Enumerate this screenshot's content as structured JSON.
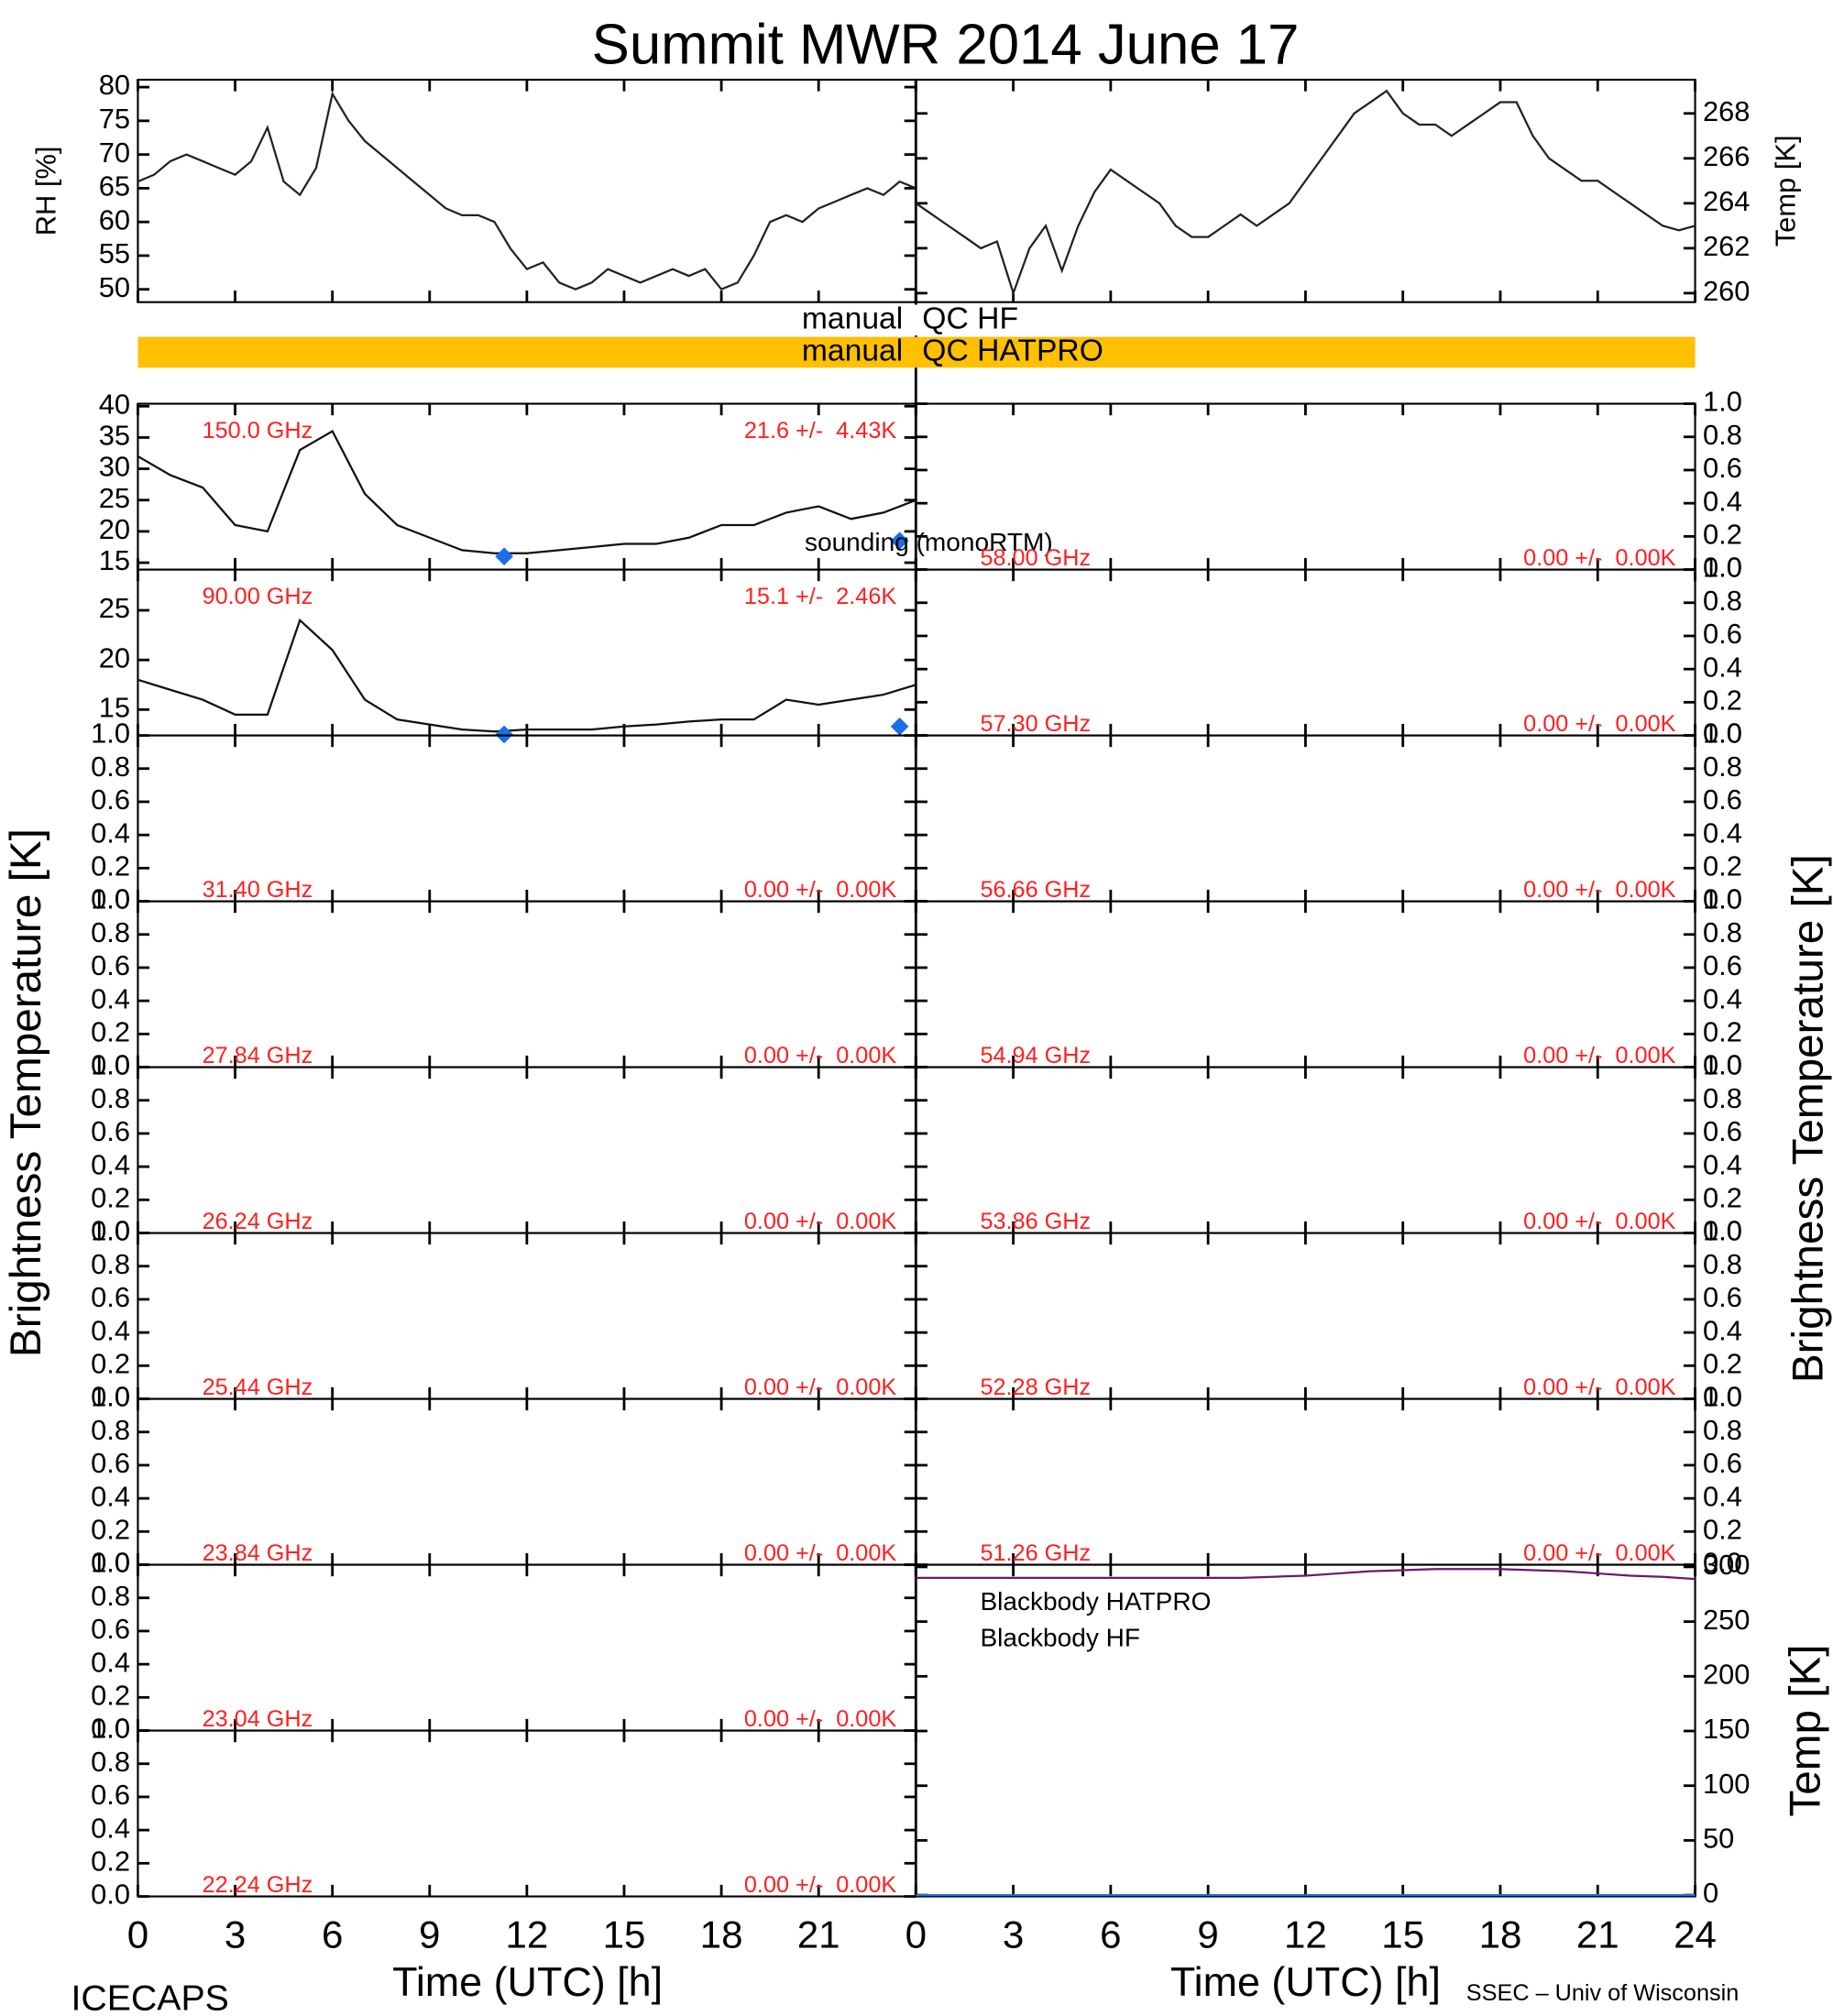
{
  "title": "Summit MWR 2014 June 17",
  "footer_left": "ICECAPS",
  "footer_right": "SSEC – Univ of Wisconsin",
  "xlabel": "Time (UTC) [h]",
  "bt_ylabel": "Brightness Temperature [K]",
  "xlim": [
    0,
    24
  ],
  "xticks": [
    0,
    3,
    6,
    9,
    12,
    15,
    18,
    21,
    24
  ],
  "qc": [
    {
      "left": "manual",
      "right": "QC HF",
      "color": "#ffffff"
    },
    {
      "left": "manual",
      "right": "QC HATPRO",
      "color": "#ffc000"
    }
  ],
  "chart_data": [
    {
      "type": "line",
      "ylabel": "RH [%]",
      "ylim": [
        48.1,
        81.1
      ],
      "yticks": [
        50,
        55,
        60,
        65,
        70,
        75,
        80
      ],
      "x": [
        0,
        0.5,
        1,
        1.5,
        2,
        2.5,
        3,
        3.5,
        4,
        4.5,
        5,
        5.5,
        6,
        6.5,
        7,
        7.5,
        8,
        8.5,
        9,
        9.5,
        10,
        10.5,
        11,
        11.5,
        12,
        12.5,
        13,
        13.5,
        14,
        14.5,
        15,
        15.5,
        16,
        16.5,
        17,
        17.5,
        18,
        18.5,
        19,
        19.5,
        20,
        20.5,
        21,
        21.5,
        22,
        22.5,
        23,
        23.5,
        24
      ],
      "series": [
        {
          "color": "#222222",
          "values": [
            66,
            67,
            69,
            70,
            69,
            68,
            67,
            69,
            74,
            66,
            64,
            68,
            79,
            75,
            72,
            70,
            68,
            66,
            64,
            62,
            61,
            61,
            60,
            56,
            53,
            54,
            51,
            50,
            51,
            53,
            52,
            51,
            52,
            53,
            52,
            53,
            50,
            51,
            55,
            60,
            61,
            60,
            62,
            63,
            64,
            65,
            64,
            66,
            65
          ]
        }
      ]
    },
    {
      "type": "line",
      "ylabel": "Temp [K]",
      "ylim": [
        259.6,
        269.5
      ],
      "yticks": [
        260,
        262,
        264,
        266,
        268
      ],
      "x": [
        0,
        0.5,
        1,
        1.5,
        2,
        2.5,
        3,
        3.5,
        4,
        4.5,
        5,
        5.5,
        6,
        6.5,
        7,
        7.5,
        8,
        8.5,
        9,
        9.5,
        10,
        10.5,
        11,
        11.5,
        12,
        12.5,
        13,
        13.5,
        14,
        14.5,
        15,
        15.5,
        16,
        16.5,
        17,
        17.5,
        18,
        18.5,
        19,
        19.5,
        20,
        20.5,
        21,
        21.5,
        22,
        22.5,
        23,
        23.5,
        24
      ],
      "series": [
        {
          "color": "#222222",
          "values": [
            264,
            263.5,
            263,
            262.5,
            262,
            262.3,
            260,
            262,
            263,
            261,
            263,
            264.5,
            265.5,
            265,
            264.5,
            264,
            263,
            262.5,
            262.5,
            263,
            263.5,
            263,
            263.5,
            264,
            265,
            266,
            267,
            268,
            268.5,
            269,
            268,
            267.5,
            267.5,
            267,
            267.5,
            268,
            268.5,
            268.5,
            267,
            266,
            265.5,
            265,
            265,
            264.5,
            264,
            263.5,
            263,
            262.8,
            263
          ]
        }
      ]
    },
    {
      "type": "line",
      "freq_label": "150.0 GHz",
      "stats_label": "21.6 +/-  4.43K",
      "ylim": [
        13.9,
        40.4
      ],
      "yticks": [
        15,
        20,
        25,
        30,
        35,
        40
      ],
      "x": [
        0,
        1,
        2,
        3,
        4,
        5,
        6,
        7,
        8,
        9,
        10,
        11,
        12,
        13,
        14,
        15,
        16,
        17,
        18,
        19,
        20,
        21,
        22,
        23,
        24
      ],
      "series": [
        {
          "color": "#111111",
          "values": [
            32,
            29,
            27,
            21,
            20,
            33,
            36,
            26,
            21,
            19,
            17,
            16.5,
            16.5,
            17,
            17.5,
            18,
            18,
            19,
            21,
            21,
            23,
            24,
            22,
            23,
            25
          ]
        }
      ],
      "points": [
        {
          "name": "sounding (monoRTM)",
          "color": "#1a6fe8",
          "x": [
            11.3,
            23.5
          ],
          "values": [
            16,
            18.5
          ]
        }
      ]
    },
    {
      "type": "line",
      "freq_label": "90.00 GHz",
      "stats_label": "15.1 +/-  2.46K",
      "ylim": [
        12.4,
        29.1
      ],
      "yticks": [
        15,
        20,
        25
      ],
      "x": [
        0,
        1,
        2,
        3,
        4,
        5,
        6,
        7,
        8,
        9,
        10,
        11,
        12,
        13,
        14,
        15,
        16,
        17,
        18,
        19,
        20,
        21,
        22,
        23,
        24
      ],
      "series": [
        {
          "color": "#111111",
          "values": [
            18,
            17,
            16,
            14.5,
            14.5,
            24,
            21,
            16,
            14,
            13.5,
            13,
            12.8,
            13,
            13,
            13,
            13.3,
            13.5,
            13.8,
            14,
            14,
            16,
            15.5,
            16,
            16.5,
            17.5
          ]
        }
      ],
      "points": [
        {
          "color": "#1a6fe8",
          "x": [
            11.3,
            23.5
          ],
          "values": [
            12.5,
            13.3
          ]
        }
      ]
    },
    {
      "type": "line",
      "freq_label": "31.40 GHz",
      "stats_label": "0.00 +/-  0.00K",
      "ylim": [
        0,
        1
      ],
      "yticks": [
        {
          "value": 0,
          "label": "0.0"
        },
        {
          "value": 0.2,
          "label": "0.2"
        },
        {
          "value": 0.4,
          "label": "0.4"
        },
        {
          "value": 0.6,
          "label": "0.6"
        },
        {
          "value": 0.8,
          "label": "0.8"
        },
        {
          "value": 1,
          "label": "1.0"
        }
      ]
    },
    {
      "type": "line",
      "freq_label": "27.84 GHz",
      "stats_label": "0.00 +/-  0.00K",
      "ylim": [
        0,
        1
      ],
      "yticks": [
        {
          "value": 0,
          "label": "0.0"
        },
        {
          "value": 0.2,
          "label": "0.2"
        },
        {
          "value": 0.4,
          "label": "0.4"
        },
        {
          "value": 0.6,
          "label": "0.6"
        },
        {
          "value": 0.8,
          "label": "0.8"
        },
        {
          "value": 1,
          "label": "1.0"
        }
      ]
    },
    {
      "type": "line",
      "freq_label": "26.24 GHz",
      "stats_label": "0.00 +/-  0.00K",
      "ylim": [
        0,
        1
      ],
      "yticks": [
        {
          "value": 0,
          "label": "0.0"
        },
        {
          "value": 0.2,
          "label": "0.2"
        },
        {
          "value": 0.4,
          "label": "0.4"
        },
        {
          "value": 0.6,
          "label": "0.6"
        },
        {
          "value": 0.8,
          "label": "0.8"
        },
        {
          "value": 1,
          "label": "1.0"
        }
      ]
    },
    {
      "type": "line",
      "freq_label": "25.44 GHz",
      "stats_label": "0.00 +/-  0.00K",
      "ylim": [
        0,
        1
      ],
      "yticks": [
        {
          "value": 0,
          "label": "0.0"
        },
        {
          "value": 0.2,
          "label": "0.2"
        },
        {
          "value": 0.4,
          "label": "0.4"
        },
        {
          "value": 0.6,
          "label": "0.6"
        },
        {
          "value": 0.8,
          "label": "0.8"
        },
        {
          "value": 1,
          "label": "1.0"
        }
      ]
    },
    {
      "type": "line",
      "freq_label": "23.84 GHz",
      "stats_label": "0.00 +/-  0.00K",
      "ylim": [
        0,
        1
      ],
      "yticks": [
        {
          "value": 0,
          "label": "0.0"
        },
        {
          "value": 0.2,
          "label": "0.2"
        },
        {
          "value": 0.4,
          "label": "0.4"
        },
        {
          "value": 0.6,
          "label": "0.6"
        },
        {
          "value": 0.8,
          "label": "0.8"
        },
        {
          "value": 1,
          "label": "1.0"
        }
      ]
    },
    {
      "type": "line",
      "freq_label": "23.04 GHz",
      "stats_label": "0.00 +/-  0.00K",
      "ylim": [
        0,
        1
      ],
      "yticks": [
        {
          "value": 0,
          "label": "0.0"
        },
        {
          "value": 0.2,
          "label": "0.2"
        },
        {
          "value": 0.4,
          "label": "0.4"
        },
        {
          "value": 0.6,
          "label": "0.6"
        },
        {
          "value": 0.8,
          "label": "0.8"
        },
        {
          "value": 1,
          "label": "1.0"
        }
      ]
    },
    {
      "type": "line",
      "freq_label": "22.24 GHz",
      "stats_label": "0.00 +/-  0.00K",
      "ylim": [
        0,
        1
      ],
      "yticks": [
        {
          "value": 0,
          "label": "0.0"
        },
        {
          "value": 0.2,
          "label": "0.2"
        },
        {
          "value": 0.4,
          "label": "0.4"
        },
        {
          "value": 0.6,
          "label": "0.6"
        },
        {
          "value": 0.8,
          "label": "0.8"
        },
        {
          "value": 1,
          "label": "1.0"
        }
      ]
    },
    {
      "type": "line",
      "freq_label": "58.00 GHz",
      "stats_label": "0.00 +/-  0.00K",
      "ylim": [
        0,
        1
      ],
      "yticks": [
        {
          "value": 0,
          "label": "0.0"
        },
        {
          "value": 0.2,
          "label": "0.2"
        },
        {
          "value": 0.4,
          "label": "0.4"
        },
        {
          "value": 0.6,
          "label": "0.6"
        },
        {
          "value": 0.8,
          "label": "0.8"
        },
        {
          "value": 1,
          "label": "1.0"
        }
      ]
    },
    {
      "type": "line",
      "freq_label": "57.30 GHz",
      "stats_label": "0.00 +/-  0.00K",
      "ylim": [
        0,
        1
      ],
      "yticks": [
        {
          "value": 0,
          "label": "0.0"
        },
        {
          "value": 0.2,
          "label": "0.2"
        },
        {
          "value": 0.4,
          "label": "0.4"
        },
        {
          "value": 0.6,
          "label": "0.6"
        },
        {
          "value": 0.8,
          "label": "0.8"
        },
        {
          "value": 1,
          "label": "1.0"
        }
      ]
    },
    {
      "type": "line",
      "freq_label": "56.66 GHz",
      "stats_label": "0.00 +/-  0.00K",
      "ylim": [
        0,
        1
      ],
      "yticks": [
        {
          "value": 0,
          "label": "0.0"
        },
        {
          "value": 0.2,
          "label": "0.2"
        },
        {
          "value": 0.4,
          "label": "0.4"
        },
        {
          "value": 0.6,
          "label": "0.6"
        },
        {
          "value": 0.8,
          "label": "0.8"
        },
        {
          "value": 1,
          "label": "1.0"
        }
      ]
    },
    {
      "type": "line",
      "freq_label": "54.94 GHz",
      "stats_label": "0.00 +/-  0.00K",
      "ylim": [
        0,
        1
      ],
      "yticks": [
        {
          "value": 0,
          "label": "0.0"
        },
        {
          "value": 0.2,
          "label": "0.2"
        },
        {
          "value": 0.4,
          "label": "0.4"
        },
        {
          "value": 0.6,
          "label": "0.6"
        },
        {
          "value": 0.8,
          "label": "0.8"
        },
        {
          "value": 1,
          "label": "1.0"
        }
      ]
    },
    {
      "type": "line",
      "freq_label": "53.86 GHz",
      "stats_label": "0.00 +/-  0.00K",
      "ylim": [
        0,
        1
      ],
      "yticks": [
        {
          "value": 0,
          "label": "0.0"
        },
        {
          "value": 0.2,
          "label": "0.2"
        },
        {
          "value": 0.4,
          "label": "0.4"
        },
        {
          "value": 0.6,
          "label": "0.6"
        },
        {
          "value": 0.8,
          "label": "0.8"
        },
        {
          "value": 1,
          "label": "1.0"
        }
      ]
    },
    {
      "type": "line",
      "freq_label": "52.28 GHz",
      "stats_label": "0.00 +/-  0.00K",
      "ylim": [
        0,
        1
      ],
      "yticks": [
        {
          "value": 0,
          "label": "0.0"
        },
        {
          "value": 0.2,
          "label": "0.2"
        },
        {
          "value": 0.4,
          "label": "0.4"
        },
        {
          "value": 0.6,
          "label": "0.6"
        },
        {
          "value": 0.8,
          "label": "0.8"
        },
        {
          "value": 1,
          "label": "1.0"
        }
      ]
    },
    {
      "type": "line",
      "freq_label": "51.26 GHz",
      "stats_label": "0.00 +/-  0.00K",
      "ylim": [
        0,
        1
      ],
      "yticks": [
        {
          "value": 0,
          "label": "0.0"
        },
        {
          "value": 0.2,
          "label": "0.2"
        },
        {
          "value": 0.4,
          "label": "0.4"
        },
        {
          "value": 0.6,
          "label": "0.6"
        },
        {
          "value": 0.8,
          "label": "0.8"
        },
        {
          "value": 1,
          "label": "1.0"
        }
      ]
    },
    {
      "type": "line",
      "ylabel": "Temp [K]",
      "ylim": [
        -1.2,
        302
      ],
      "yticks": [
        0,
        50,
        100,
        150,
        200,
        250,
        300
      ],
      "x": [
        0,
        1,
        2,
        3,
        4,
        5,
        6,
        7,
        8,
        9,
        10,
        11,
        12,
        13,
        14,
        15,
        16,
        17,
        18,
        19,
        20,
        21,
        22,
        23,
        24
      ],
      "series": [
        {
          "name": "Blackbody HATPRO",
          "color": "#1a6fe8",
          "values": [
            0,
            0,
            0,
            0,
            0,
            0,
            0,
            0,
            0,
            0,
            0,
            0,
            0,
            0,
            0,
            0,
            0,
            0,
            0,
            0,
            0,
            0,
            0,
            0,
            0
          ]
        },
        {
          "name": "Blackbody HF",
          "color": "#6a1a6a",
          "values": [
            290,
            290,
            290,
            290,
            290,
            290,
            290,
            290,
            290,
            290,
            290,
            291,
            292,
            294,
            296,
            297,
            298,
            298,
            298,
            297,
            296,
            294,
            292,
            291,
            289
          ]
        }
      ]
    }
  ]
}
